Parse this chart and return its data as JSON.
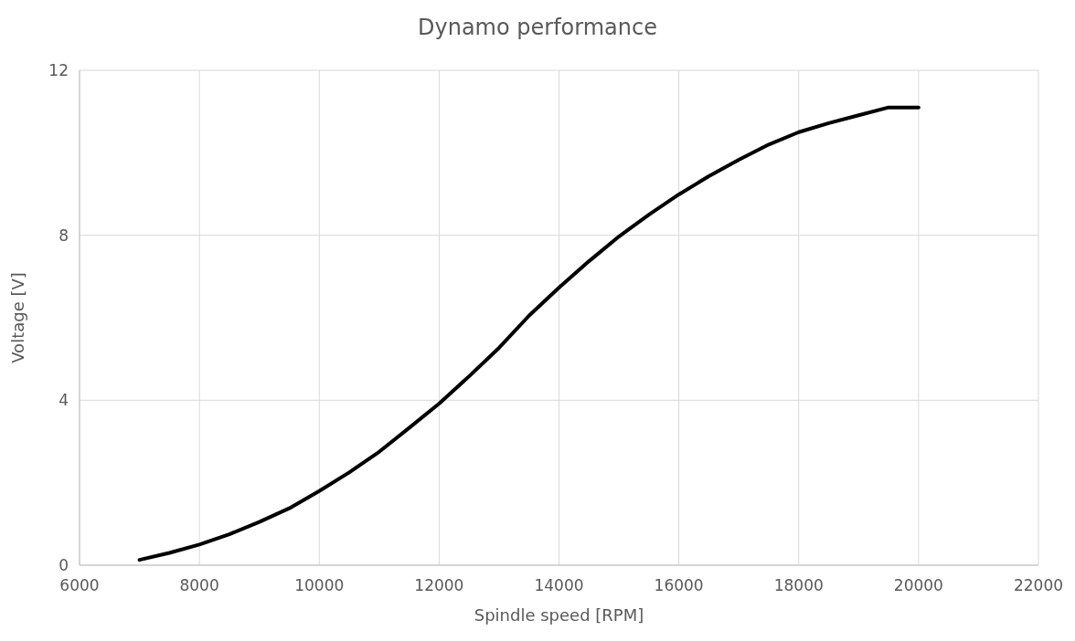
{
  "chart_data": {
    "type": "line",
    "title": "Dynamo performance",
    "xlabel": "Spindle speed [RPM]",
    "ylabel": "Voltage [V]",
    "x": [
      7000,
      7500,
      8000,
      8500,
      9000,
      9500,
      10000,
      10500,
      11000,
      11500,
      12000,
      12500,
      13000,
      13500,
      14000,
      14500,
      15000,
      15500,
      16000,
      16500,
      17000,
      17500,
      18000,
      18500,
      19000,
      19500,
      20000
    ],
    "series": [
      {
        "color": "#000000",
        "values": [
          0.13,
          0.3,
          0.5,
          0.75,
          1.05,
          1.38,
          1.8,
          2.25,
          2.75,
          3.33,
          3.92,
          4.58,
          5.27,
          6.05,
          6.73,
          7.37,
          7.97,
          8.5,
          8.99,
          9.43,
          9.83,
          10.2,
          10.5,
          10.72,
          10.91,
          11.1,
          11.1
        ]
      }
    ],
    "xlim": [
      6000,
      22000
    ],
    "xticks": [
      6000,
      8000,
      10000,
      12000,
      14000,
      16000,
      18000,
      20000,
      22000
    ],
    "ylim": [
      0,
      12
    ],
    "yticks": [
      0,
      4,
      8,
      12
    ],
    "grid": true,
    "marker": "none",
    "line_style": "solid"
  }
}
